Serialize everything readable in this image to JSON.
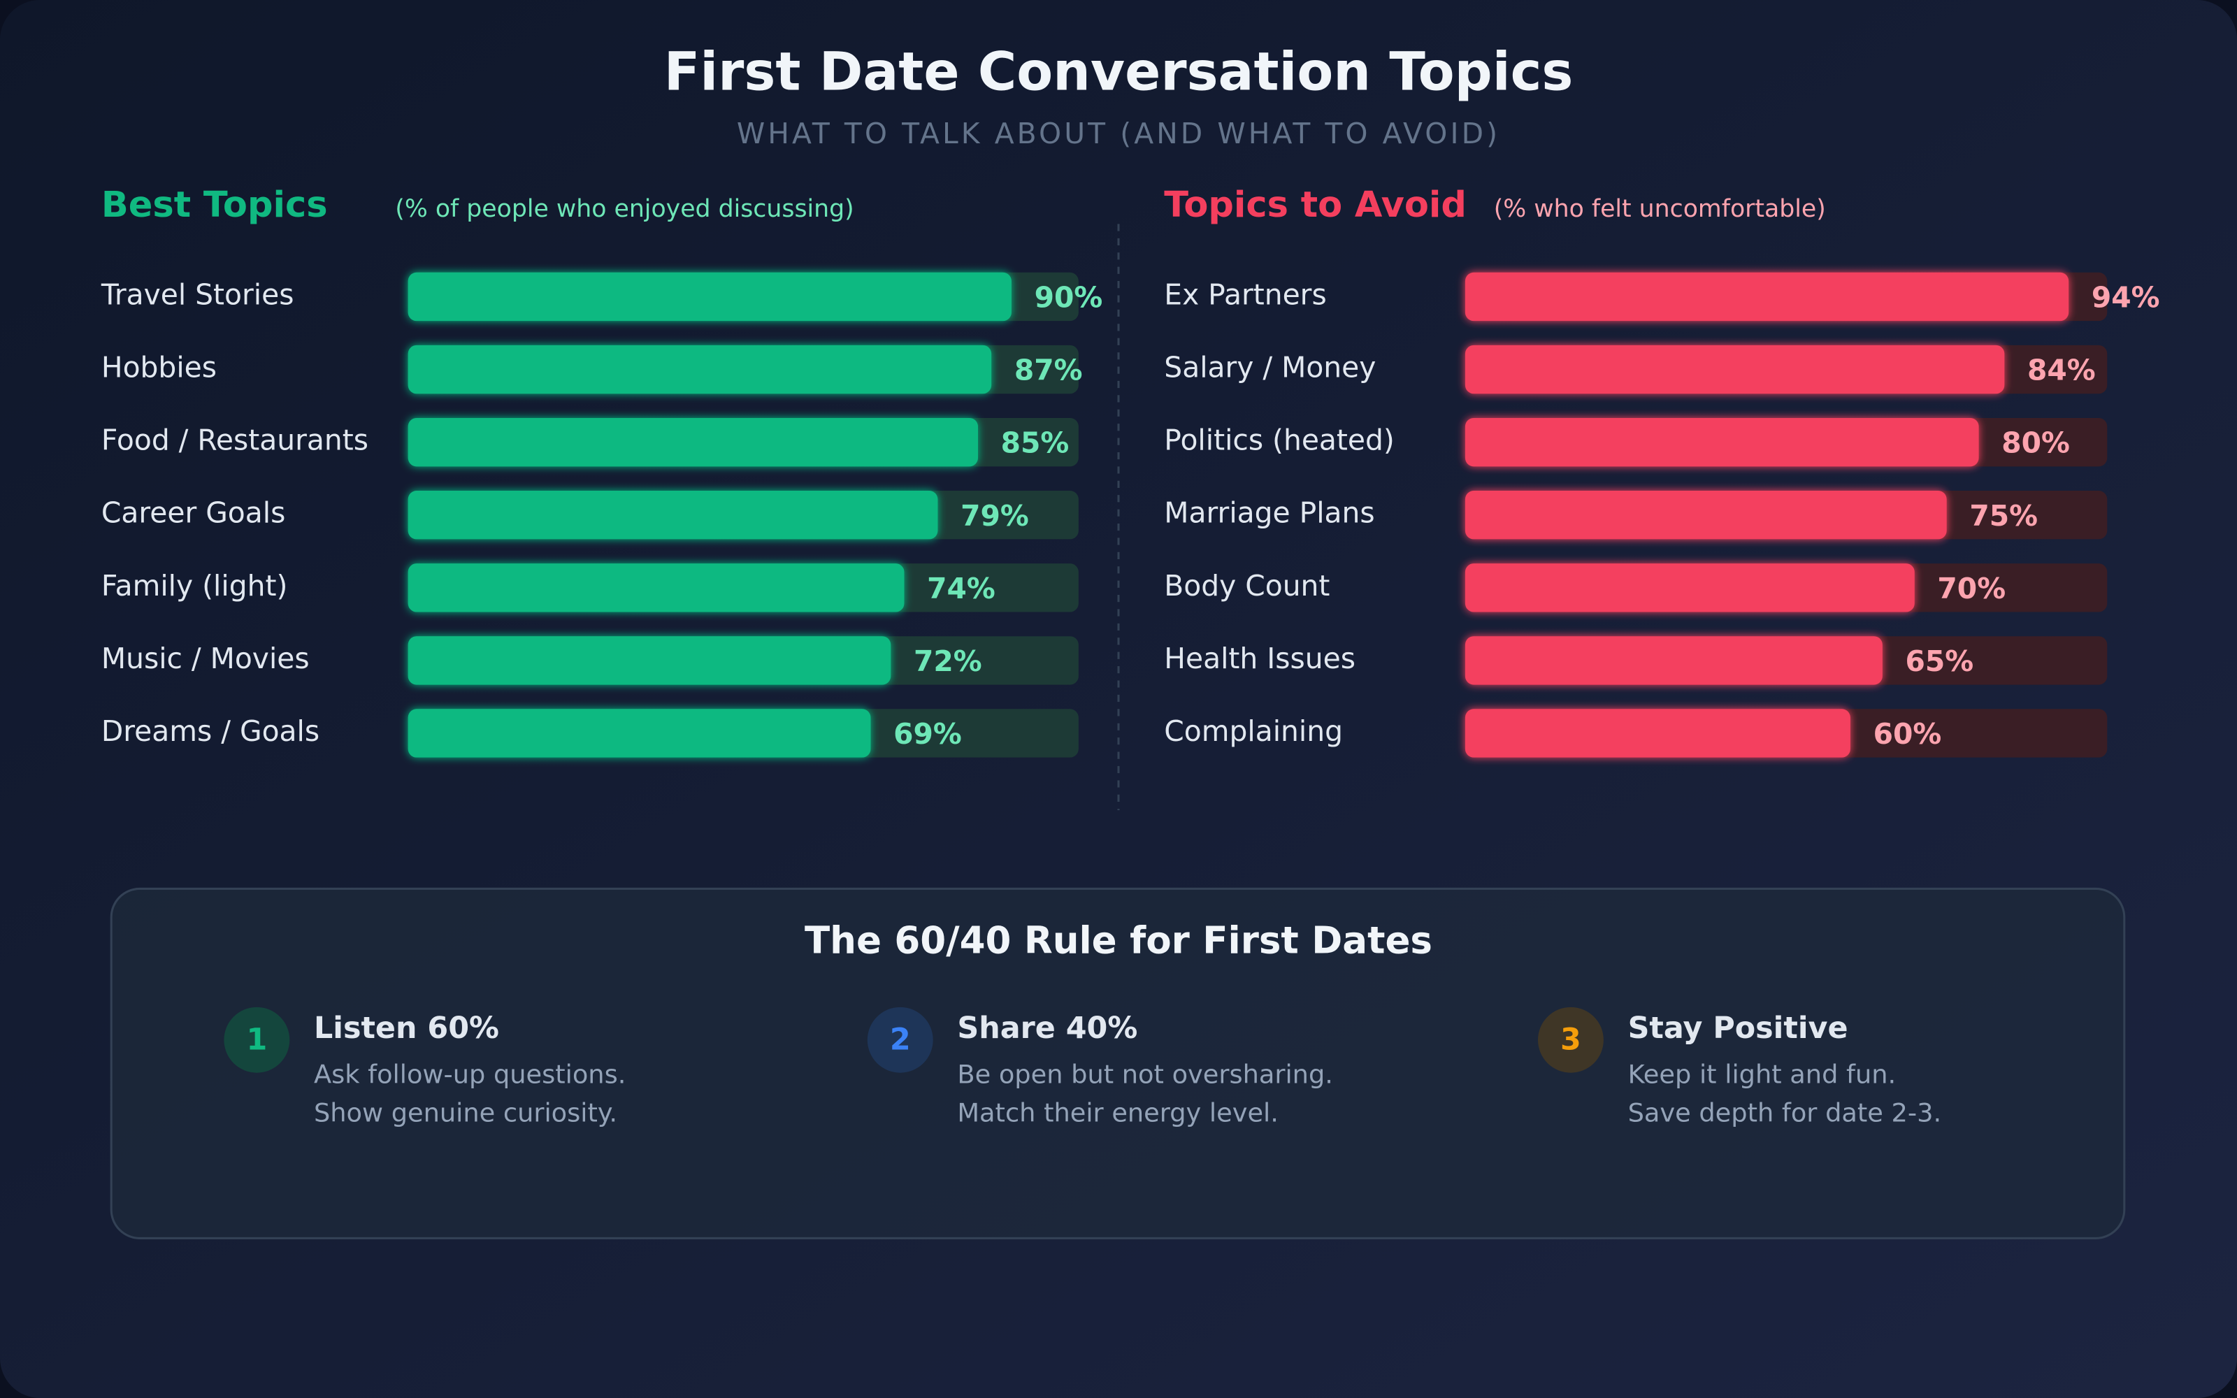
{
  "header": {
    "title": "First Date Conversation Topics",
    "subtitle": "WHAT TO TALK ABOUT (AND WHAT TO AVOID)"
  },
  "chart_data": [
    {
      "type": "bar",
      "orientation": "horizontal",
      "title": "Best Topics",
      "subtitle": "(% of people who enjoyed discussing)",
      "categories": [
        "Travel Stories",
        "Hobbies",
        "Food / Restaurants",
        "Career Goals",
        "Family (light)",
        "Music / Movies",
        "Dreams / Goals"
      ],
      "values": [
        90,
        87,
        85,
        79,
        74,
        72,
        69
      ],
      "value_labels": [
        "90%",
        "87%",
        "85%",
        "79%",
        "74%",
        "72%",
        "69%"
      ],
      "color": "#10b981",
      "track_color": "#1d3a36",
      "label_color": "#6ee7b7",
      "xlim": [
        0,
        100
      ]
    },
    {
      "type": "bar",
      "orientation": "horizontal",
      "title": "Topics to Avoid",
      "subtitle": "(% who felt uncomfortable)",
      "categories": [
        "Ex Partners",
        "Salary / Money",
        "Politics (heated)",
        "Marriage Plans",
        "Body Count",
        "Health Issues",
        "Complaining"
      ],
      "values": [
        94,
        84,
        80,
        75,
        70,
        65,
        60
      ],
      "value_labels": [
        "94%",
        "84%",
        "80%",
        "75%",
        "70%",
        "65%",
        "60%"
      ],
      "color": "#f43f5e",
      "track_color": "#3a1e25",
      "label_color": "#fda4af",
      "xlim": [
        0,
        100
      ]
    }
  ],
  "rule": {
    "title": "The 60/40 Rule for First Dates",
    "tips": [
      {
        "number": "1",
        "title": "Listen 60%",
        "lines": [
          "Ask follow-up questions.",
          "Show genuine curiosity."
        ],
        "color": "#10b981",
        "badge": "#14463d"
      },
      {
        "number": "2",
        "title": "Share 40%",
        "lines": [
          "Be open but not oversharing.",
          "Match their energy level."
        ],
        "color": "#3b82f6",
        "badge": "#1e3558"
      },
      {
        "number": "3",
        "title": "Stay Positive",
        "lines": [
          "Keep it light and fun.",
          "Save depth for date 2-3."
        ],
        "color": "#f59e0b",
        "badge": "#3f3626"
      }
    ]
  }
}
